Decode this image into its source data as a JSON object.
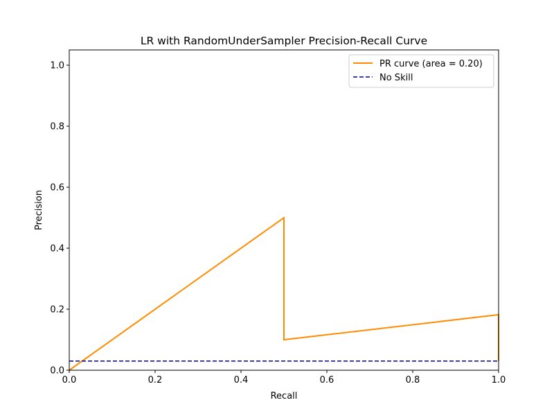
{
  "chart_data": {
    "type": "line",
    "title": "LR with RandomUnderSampler Precision-Recall Curve",
    "xlabel": "Recall",
    "ylabel": "Precision",
    "xlim": [
      0.0,
      1.0
    ],
    "ylim": [
      0.0,
      1.05
    ],
    "xticks": [
      "0.0",
      "0.2",
      "0.4",
      "0.6",
      "0.8",
      "1.0"
    ],
    "yticks": [
      "0.0",
      "0.2",
      "0.4",
      "0.6",
      "0.8",
      "1.0"
    ],
    "grid": false,
    "legend_position": "top-right",
    "series": [
      {
        "name": "PR curve (area = 0.20)",
        "color": "#ff8c00",
        "style": "solid",
        "x": [
          0.0,
          0.5,
          0.5,
          1.0,
          1.0
        ],
        "y": [
          0.0,
          0.5,
          0.1,
          0.182,
          0.03
        ]
      },
      {
        "name": "No Skill",
        "color": "#000080",
        "style": "dashed",
        "x": [
          0.0,
          1.0
        ],
        "y": [
          0.03,
          0.03
        ]
      }
    ]
  }
}
